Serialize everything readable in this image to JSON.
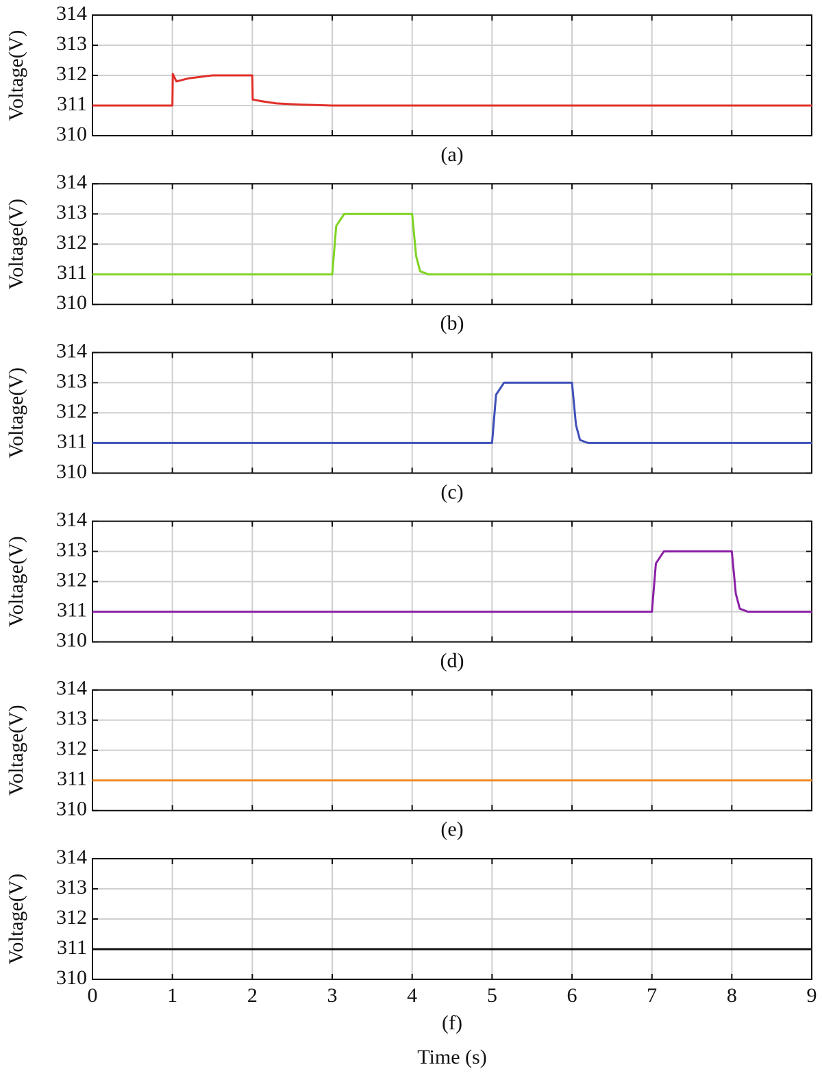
{
  "chart_data": [
    {
      "type": "line",
      "ylabel": "Voltage(V)",
      "caption": "(a)",
      "xlim": [
        0,
        9
      ],
      "ylim": [
        310,
        314
      ],
      "xticks": [
        0,
        1,
        2,
        3,
        4,
        5,
        6,
        7,
        8,
        9
      ],
      "yticks": [
        310,
        311,
        312,
        313,
        314
      ],
      "xtick_labels": false,
      "grid": true,
      "x": [
        0,
        0.5,
        0.99,
        1.0,
        1.005,
        1.05,
        1.2,
        1.5,
        1.99,
        2.0,
        2.005,
        2.1,
        2.3,
        2.6,
        3,
        4,
        5,
        6,
        7,
        8,
        9
      ],
      "series": [
        {
          "color": "#e0302a",
          "values": [
            311,
            311,
            311,
            311,
            312.05,
            311.8,
            311.9,
            312,
            312,
            312,
            311.2,
            311.15,
            311.07,
            311.03,
            311,
            311,
            311,
            311,
            311,
            311,
            311
          ]
        }
      ]
    },
    {
      "type": "line",
      "ylabel": "Voltage(V)",
      "caption": "(b)",
      "xlim": [
        0,
        9
      ],
      "ylim": [
        310,
        314
      ],
      "xticks": [
        0,
        1,
        2,
        3,
        4,
        5,
        6,
        7,
        8,
        9
      ],
      "yticks": [
        310,
        311,
        312,
        313,
        314
      ],
      "xtick_labels": false,
      "grid": true,
      "x": [
        0,
        1,
        2,
        2.99,
        3.0,
        3.05,
        3.15,
        3.5,
        4.0,
        4.05,
        4.1,
        4.2,
        5,
        6,
        7,
        8,
        9
      ],
      "series": [
        {
          "color": "#7ed321",
          "values": [
            311,
            311,
            311,
            311,
            311,
            312.6,
            313,
            313,
            313,
            311.6,
            311.1,
            311,
            311,
            311,
            311,
            311,
            311
          ]
        }
      ]
    },
    {
      "type": "line",
      "ylabel": "Voltage(V)",
      "caption": "(c)",
      "xlim": [
        0,
        9
      ],
      "ylim": [
        310,
        314
      ],
      "xticks": [
        0,
        1,
        2,
        3,
        4,
        5,
        6,
        7,
        8,
        9
      ],
      "yticks": [
        310,
        311,
        312,
        313,
        314
      ],
      "xtick_labels": false,
      "grid": true,
      "x": [
        0,
        1,
        2,
        3,
        4,
        4.99,
        5.0,
        5.05,
        5.15,
        5.5,
        6.0,
        6.05,
        6.1,
        6.2,
        7,
        8,
        9
      ],
      "series": [
        {
          "color": "#3f4fb8",
          "values": [
            311,
            311,
            311,
            311,
            311,
            311,
            311,
            312.6,
            313,
            313,
            313,
            311.6,
            311.1,
            311,
            311,
            311,
            311
          ]
        }
      ]
    },
    {
      "type": "line",
      "ylabel": "Voltage(V)",
      "caption": "(d)",
      "xlim": [
        0,
        9
      ],
      "ylim": [
        310,
        314
      ],
      "xticks": [
        0,
        1,
        2,
        3,
        4,
        5,
        6,
        7,
        8,
        9
      ],
      "yticks": [
        310,
        311,
        312,
        313,
        314
      ],
      "xtick_labels": false,
      "grid": true,
      "x": [
        0,
        1,
        2,
        3,
        4,
        5,
        6,
        6.99,
        7.0,
        7.05,
        7.15,
        7.5,
        8.0,
        8.05,
        8.1,
        8.2,
        9
      ],
      "series": [
        {
          "color": "#8a1fa6",
          "values": [
            311,
            311,
            311,
            311,
            311,
            311,
            311,
            311,
            311,
            312.6,
            313,
            313,
            313,
            311.6,
            311.1,
            311,
            311
          ]
        }
      ]
    },
    {
      "type": "line",
      "ylabel": "Voltage(V)",
      "caption": "(e)",
      "xlim": [
        0,
        9
      ],
      "ylim": [
        310,
        314
      ],
      "xticks": [
        0,
        1,
        2,
        3,
        4,
        5,
        6,
        7,
        8,
        9
      ],
      "yticks": [
        310,
        311,
        312,
        313,
        314
      ],
      "xtick_labels": false,
      "grid": true,
      "x": [
        0,
        1,
        2,
        3,
        4,
        5,
        6,
        7,
        8,
        9
      ],
      "series": [
        {
          "color": "#f08a24",
          "values": [
            311,
            311,
            311,
            311,
            311,
            311,
            311,
            311,
            311,
            311
          ]
        }
      ]
    },
    {
      "type": "line",
      "ylabel": "Voltage(V)",
      "caption": "(f)",
      "xlabel": "Time (s)",
      "xlim": [
        0,
        9
      ],
      "ylim": [
        310,
        314
      ],
      "xticks": [
        0,
        1,
        2,
        3,
        4,
        5,
        6,
        7,
        8,
        9
      ],
      "yticks": [
        310,
        311,
        312,
        313,
        314
      ],
      "xtick_labels": true,
      "grid": true,
      "x": [
        0,
        1,
        2,
        3,
        4,
        5,
        6,
        7,
        8,
        9
      ],
      "series": [
        {
          "color": "#111111",
          "values": [
            311,
            311,
            311,
            311,
            311,
            311,
            311,
            311,
            311,
            311
          ]
        }
      ]
    }
  ]
}
